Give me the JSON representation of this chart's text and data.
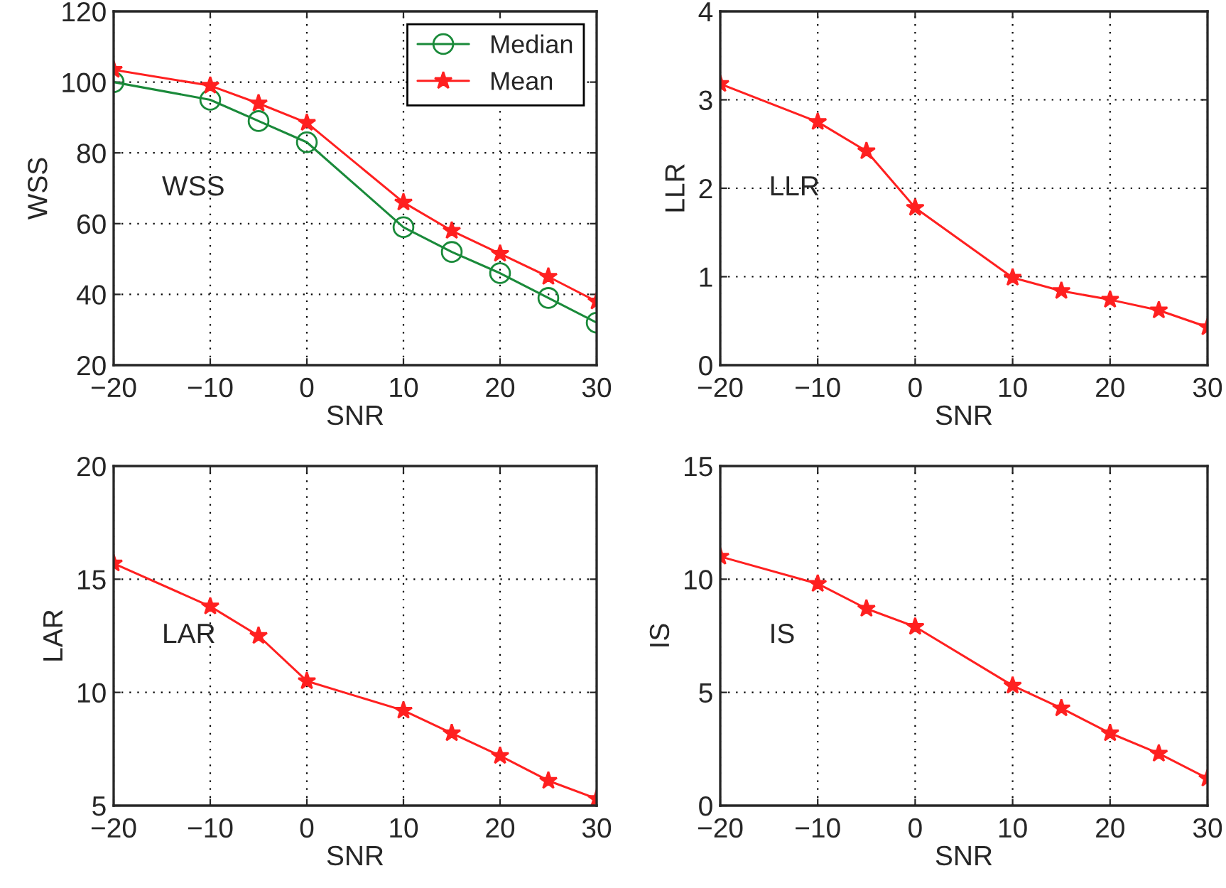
{
  "chart_data": [
    {
      "type": "line",
      "xlabel": "SNR",
      "ylabel": "WSS",
      "annotations": [
        "WSS"
      ],
      "x": [
        -20,
        -10,
        -5,
        0,
        10,
        15,
        20,
        25,
        30
      ],
      "xlim": [
        -20,
        30
      ],
      "xticks": [
        -20,
        -10,
        0,
        10,
        20,
        30
      ],
      "ylim": [
        20,
        120
      ],
      "yticks": [
        20,
        40,
        60,
        80,
        100,
        120
      ],
      "grid": true,
      "legend": "top right",
      "series": [
        {
          "name": "Median",
          "color": "#1a8a3a",
          "marker": "circle",
          "values": [
            100,
            95,
            89,
            83,
            59,
            52,
            46,
            39,
            32
          ]
        },
        {
          "name": "Mean",
          "color": "#ff2020",
          "marker": "star",
          "values": [
            103.5,
            99,
            94,
            88.5,
            66,
            58,
            51.5,
            45,
            38
          ]
        }
      ]
    },
    {
      "type": "line",
      "xlabel": "SNR",
      "ylabel": "LLR",
      "annotations": [
        "LLR"
      ],
      "x": [
        -20,
        -10,
        -5,
        0,
        10,
        15,
        20,
        25,
        30
      ],
      "xlim": [
        -20,
        30
      ],
      "xticks": [
        -20,
        -10,
        0,
        10,
        20,
        30
      ],
      "ylim": [
        0,
        4
      ],
      "yticks": [
        0,
        1,
        2,
        3,
        4
      ],
      "grid": true,
      "series": [
        {
          "color": "#ff2020",
          "marker": "star",
          "values": [
            3.18,
            2.75,
            2.42,
            1.78,
            0.99,
            0.84,
            0.74,
            0.62,
            0.43
          ]
        }
      ]
    },
    {
      "type": "line",
      "xlabel": "SNR",
      "ylabel": "LAR",
      "annotations": [
        "LAR"
      ],
      "x": [
        -20,
        -10,
        -5,
        0,
        10,
        15,
        20,
        25,
        30
      ],
      "xlim": [
        -20,
        30
      ],
      "xticks": [
        -20,
        -10,
        0,
        10,
        20,
        30
      ],
      "ylim": [
        5,
        20
      ],
      "yticks": [
        5,
        10,
        15,
        20
      ],
      "grid": true,
      "series": [
        {
          "color": "#ff2020",
          "marker": "star",
          "values": [
            15.7,
            13.8,
            12.5,
            10.5,
            9.2,
            8.2,
            7.2,
            6.1,
            5.3
          ]
        }
      ]
    },
    {
      "type": "line",
      "xlabel": "SNR",
      "ylabel": "IS",
      "annotations": [
        "IS"
      ],
      "x": [
        -20,
        -10,
        -5,
        0,
        10,
        15,
        20,
        25,
        30
      ],
      "xlim": [
        -20,
        30
      ],
      "xticks": [
        -20,
        -10,
        0,
        10,
        20,
        30
      ],
      "ylim": [
        0,
        15
      ],
      "yticks": [
        0,
        5,
        10,
        15
      ],
      "grid": true,
      "series": [
        {
          "color": "#ff2020",
          "marker": "star",
          "values": [
            11.0,
            9.8,
            8.7,
            7.9,
            5.3,
            4.3,
            3.2,
            2.3,
            1.2
          ]
        }
      ]
    }
  ]
}
